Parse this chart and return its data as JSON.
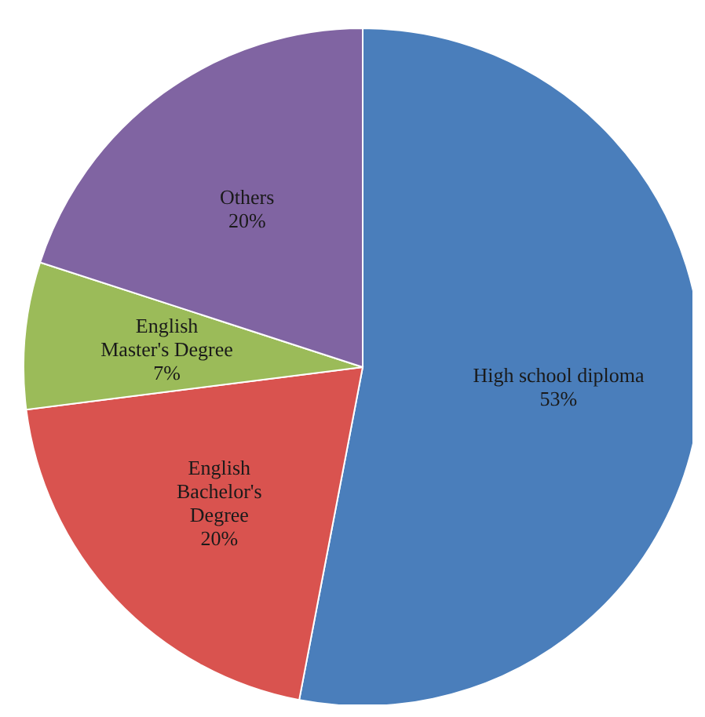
{
  "chart_data": {
    "type": "pie",
    "categories": [
      "High school diploma",
      "English Bachelor's Degree",
      "English Master's Degree",
      "Others"
    ],
    "values": [
      53,
      20,
      7,
      20
    ],
    "value_labels": [
      "53%",
      "20%",
      "7%",
      "20%"
    ],
    "colors": [
      "#4a7ebb",
      "#d9534f",
      "#9bbb59",
      "#8064a2"
    ]
  }
}
